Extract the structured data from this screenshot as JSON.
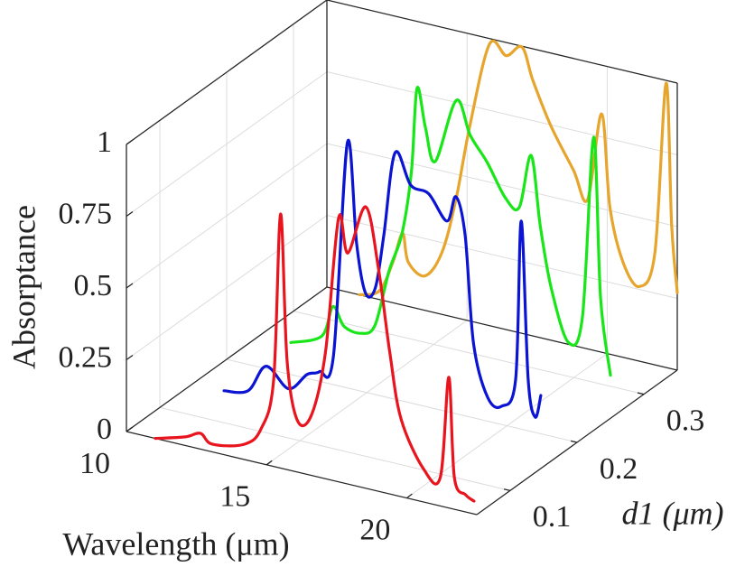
{
  "chart_data": {
    "type": "waterfall3d",
    "xlabel": "Wavelength (μm)",
    "ylabel": "d1 (μm)",
    "zlabel": "Absorptance",
    "xlim": [
      10,
      22.5
    ],
    "ylim": [
      0.05,
      0.35
    ],
    "zlim": [
      0,
      1
    ],
    "xticks": [
      10,
      15,
      20
    ],
    "yticks": [
      0.1,
      0.2,
      0.3
    ],
    "zticks": [
      0,
      0.25,
      0.5,
      0.75,
      1
    ],
    "grid": true,
    "series": [
      {
        "d1": 0.05,
        "color": "#e8141e",
        "x": [
          11.03,
          12.1,
          12.64,
          13.06,
          14.2,
          14.8,
          15.25,
          15.5,
          15.73,
          16.1,
          16.6,
          17.1,
          17.57,
          17.9,
          18.54,
          19.0,
          19.4,
          19.8,
          20.6,
          21.2,
          21.5,
          21.7,
          22.1,
          22.4
        ],
        "values": [
          0,
          0.03,
          0.055,
          0.027,
          0.053,
          0.12,
          0.3,
          0.885,
          0.38,
          0.18,
          0.21,
          0.44,
          0.92,
          0.805,
          0.98,
          0.77,
          0.49,
          0.27,
          0.115,
          0.1,
          0.455,
          0.11,
          0.06,
          0.045
        ]
      },
      {
        "d1": 0.15,
        "color": "#0a14d2",
        "x": [
          11.1,
          11.96,
          12.6,
          13.4,
          14.06,
          14.5,
          15.0,
          15.5,
          15.83,
          16.15,
          16.5,
          16.8,
          17.2,
          17.76,
          18.4,
          19.05,
          19.37,
          19.7,
          20.0,
          20.5,
          21.0,
          21.5,
          21.7,
          21.95,
          22.2,
          22.4
        ],
        "values": [
          0,
          0.02,
          0.12,
          0.06,
          0.125,
          0.145,
          0.21,
          0.966,
          0.62,
          0.456,
          0.485,
          0.675,
          0.97,
          0.87,
          0.855,
          0.775,
          0.867,
          0.74,
          0.37,
          0.195,
          0.175,
          0.28,
          0.836,
          0.29,
          0.165,
          0.245
        ]
      },
      {
        "d1": 0.25,
        "color": "#19e619",
        "x": [
          11.1,
          12.2,
          12.6,
          13.0,
          13.6,
          14.1,
          14.6,
          15.06,
          15.4,
          15.6,
          15.9,
          16.25,
          17.0,
          17.5,
          18.1,
          18.76,
          19.25,
          19.67,
          20.0,
          20.4,
          21.0,
          21.5,
          21.9,
          22.15,
          22.5
        ],
        "values": [
          0,
          0.048,
          0.16,
          0.1,
          0.09,
          0.13,
          0.33,
          0.47,
          0.695,
          0.99,
          0.86,
          0.75,
          0.98,
          0.87,
          0.79,
          0.68,
          0.66,
          0.85,
          0.61,
          0.4,
          0.23,
          0.33,
          0.965,
          0.41,
          0.15
        ]
      },
      {
        "d1": 0.35,
        "color": "#e6a52d",
        "x": [
          11.16,
          11.87,
          12.35,
          12.7,
          12.9,
          13.5,
          14.1,
          14.6,
          15.1,
          15.8,
          16.4,
          16.96,
          17.35,
          18.0,
          18.8,
          19.3,
          19.8,
          20.1,
          20.57,
          21.15,
          21.7,
          22.1,
          22.3,
          22.5
        ],
        "values": [
          0,
          0.03,
          0.14,
          0.25,
          0.155,
          0.12,
          0.215,
          0.41,
          0.68,
          0.98,
          0.954,
          0.997,
          0.89,
          0.745,
          0.61,
          0.52,
          0.83,
          0.51,
          0.33,
          0.26,
          0.39,
          0.99,
          0.5,
          0.27
        ]
      }
    ]
  }
}
